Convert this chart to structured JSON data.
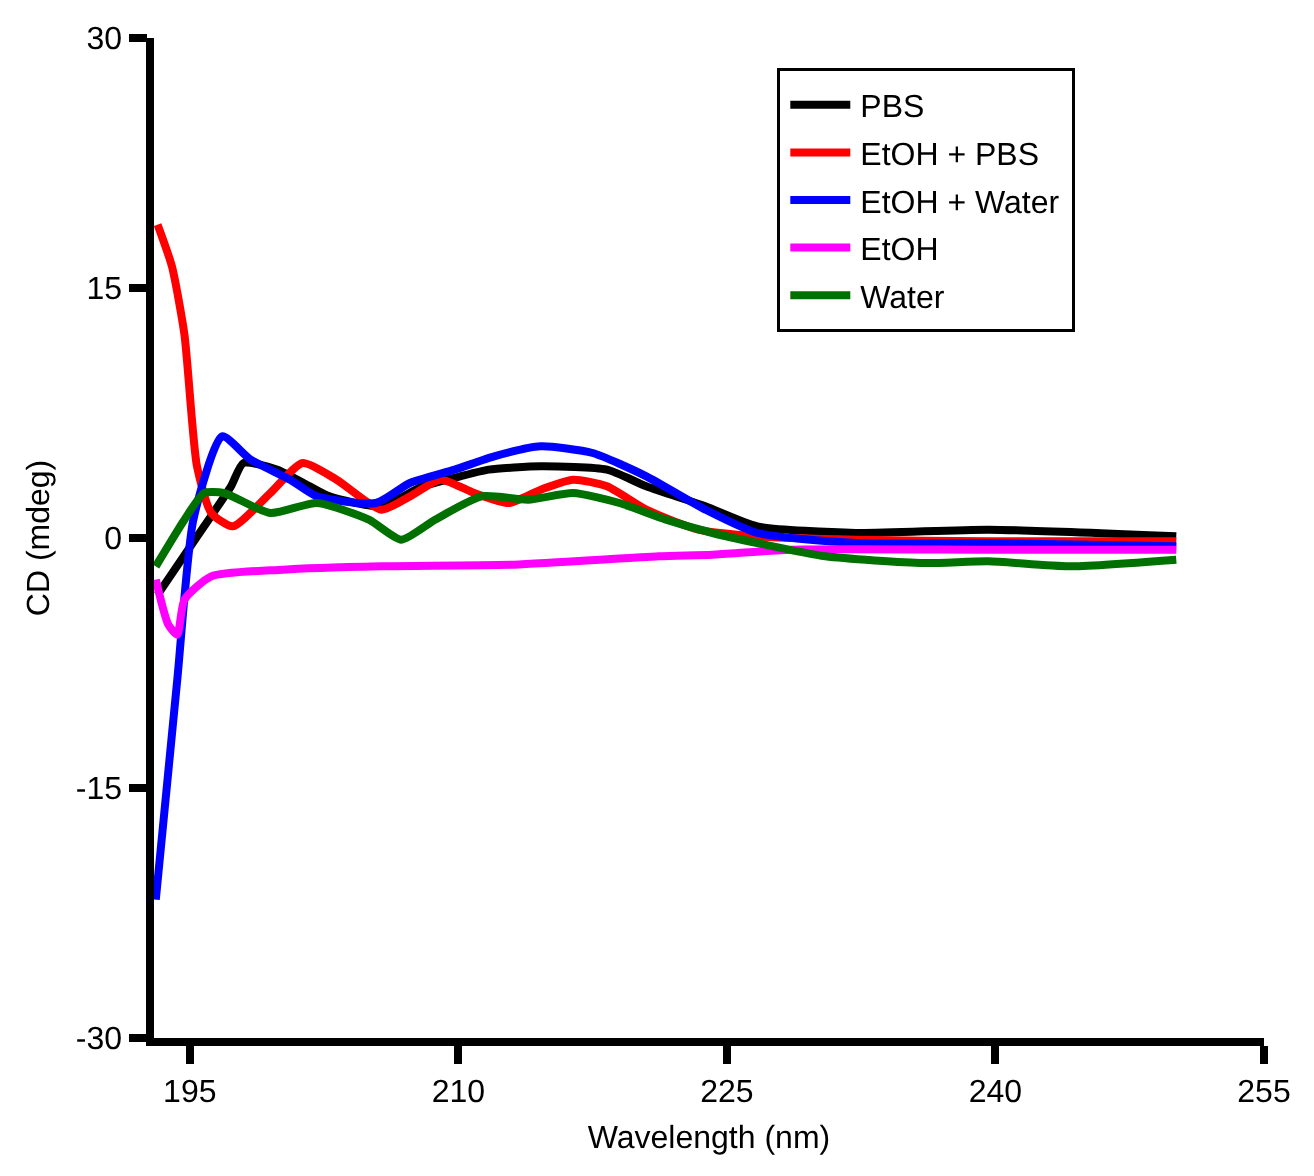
{
  "chart_data": {
    "type": "line",
    "xlabel": "Wavelength (nm)",
    "ylabel": "CD (mdeg)",
    "xlim": [
      193,
      255
    ],
    "xticks": [
      195,
      210,
      225,
      240,
      255
    ],
    "ylim": [
      -30,
      30
    ],
    "yticks": [
      -30,
      -15,
      0,
      15,
      30
    ],
    "grid": false,
    "legend": "top right",
    "marker": "none",
    "line_style": "solid",
    "series": [
      {
        "name": "PBS",
        "color": "#000000",
        "x": [
          193.2,
          195.8,
          197.3,
          198,
          199.9,
          201.7,
          202.8,
          205.7,
          208,
          210.1,
          211.7,
          214.6,
          218.3,
          220.5,
          223.8,
          226.7,
          232.2,
          239.6,
          250.1
        ],
        "values": [
          -3.4,
          0.7,
          3.1,
          4.5,
          4.1,
          3.1,
          2.5,
          1.9,
          3.1,
          3.7,
          4.1,
          4.3,
          4.1,
          3.1,
          1.9,
          0.7,
          0.3,
          0.5,
          0.1
        ]
      },
      {
        "name": "EtOH + PBS",
        "color": "#ff0000",
        "x": [
          193.2,
          194,
          194.7,
          195.4,
          196.2,
          197.4,
          199.5,
          201.3,
          203.2,
          205.7,
          207.3,
          209,
          210.9,
          212.8,
          214.6,
          216.4,
          218.3,
          220.5,
          223.4,
          226.7,
          232.2,
          239.6,
          250.1
        ],
        "values": [
          18.8,
          16.3,
          12.2,
          4.3,
          1.5,
          0.7,
          2.7,
          4.5,
          3.5,
          1.7,
          2.5,
          3.5,
          2.7,
          2.1,
          2.9,
          3.5,
          3.1,
          1.7,
          0.5,
          0.1,
          -0.1,
          -0.2,
          -0.2
        ]
      },
      {
        "name": "EtOH + Water",
        "color": "#0000ff",
        "x": [
          193.1,
          194.3,
          195.2,
          196.8,
          198.4,
          200.6,
          202.1,
          205.4,
          207.3,
          209.8,
          212,
          214.6,
          217.5,
          220.5,
          223.8,
          226.7,
          232.2,
          239.6,
          250.1
        ],
        "values": [
          -21.7,
          -8.5,
          1.1,
          6.1,
          4.7,
          3.5,
          2.5,
          2.1,
          3.3,
          4.1,
          4.9,
          5.5,
          5.1,
          3.7,
          1.7,
          0.3,
          -0.3,
          -0.3,
          -0.5
        ]
      },
      {
        "name": "EtOH",
        "color": "#ff00ff",
        "x": [
          193.1,
          193.8,
          194.3,
          194.7,
          196.2,
          200.2,
          205.7,
          213.1,
          221.2,
          224.2,
          228.6,
          239.6,
          250.1
        ],
        "values": [
          -2.5,
          -5.2,
          -5.8,
          -3.7,
          -2.3,
          -1.9,
          -1.7,
          -1.6,
          -1.1,
          -1,
          -0.7,
          -0.7,
          -0.7
        ]
      },
      {
        "name": "Water",
        "color": "#007000",
        "x": [
          193.1,
          194.7,
          195.8,
          196.9,
          199.5,
          202.1,
          205,
          206.8,
          208.7,
          211.3,
          213.9,
          216.4,
          219,
          221.6,
          224.2,
          226.7,
          230.5,
          236,
          239.6,
          244.1,
          250.1
        ],
        "values": [
          -1.7,
          1.1,
          2.7,
          2.7,
          1.5,
          2.1,
          1.1,
          -0.1,
          1.1,
          2.5,
          2.3,
          2.7,
          2.1,
          1.1,
          0.3,
          -0.3,
          -1.1,
          -1.5,
          -1.4,
          -1.7,
          -1.3
        ]
      }
    ]
  }
}
